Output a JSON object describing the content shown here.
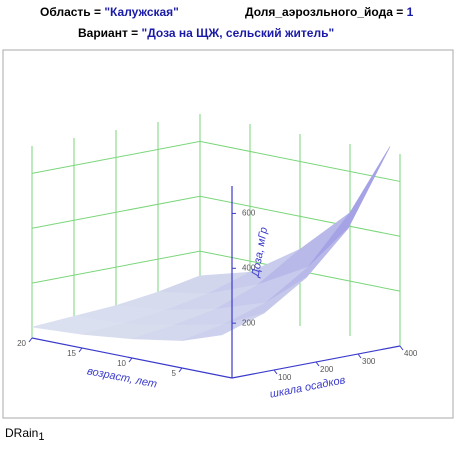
{
  "header": {
    "region_label": "Область = ",
    "region_value": "\"Калужская\"",
    "share_label": "Доля_аэрозльного_йода = ",
    "share_value": "1",
    "variant_label": "Вариант = ",
    "variant_value": "\"Доза на ЩЖ, сельский житель\""
  },
  "chart_data": {
    "type": "surface",
    "x_label": "возраст, лет",
    "y_label": "шкала осадков",
    "z_label": "Доза, мГр",
    "x": [
      1,
      5,
      10,
      15,
      20
    ],
    "y": [
      0,
      100,
      200,
      300,
      400
    ],
    "z": [
      [
        150,
        200,
        300,
        450,
        720
      ],
      [
        100,
        130,
        180,
        280,
        450
      ],
      [
        70,
        90,
        120,
        180,
        280
      ],
      [
        50,
        60,
        80,
        110,
        160
      ],
      [
        40,
        50,
        60,
        80,
        110
      ]
    ],
    "xlim": [
      0,
      20
    ],
    "ylim": [
      0,
      400
    ],
    "zlim": [
      0,
      700
    ],
    "xticks": [
      5,
      10,
      15,
      20
    ],
    "yticks": [
      100,
      200,
      300,
      400
    ],
    "zticks": [
      200,
      400,
      600
    ],
    "axis_color": "#3a3acc",
    "grid_color": "#7ad67a"
  },
  "footer": {
    "name": "DRain",
    "index": "1"
  }
}
